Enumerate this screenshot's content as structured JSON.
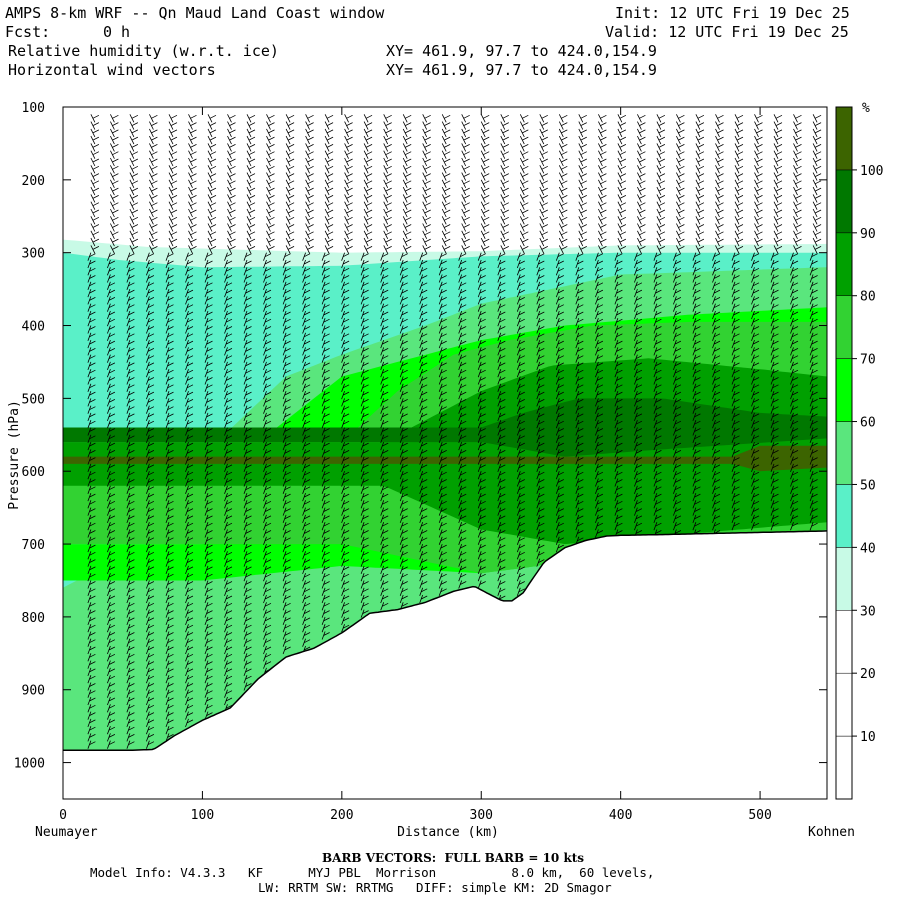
{
  "header": {
    "title": "AMPS 8-km WRF -- Qn Maud Land Coast window",
    "init": "Init: 12 UTC Fri 19 Dec 25",
    "fcst_label": "Fcst:",
    "fcst_value": "0 h",
    "valid": "Valid: 12 UTC Fri 19 Dec 25",
    "field1": "Relative humidity (w.r.t. ice)",
    "field2": "Horizontal wind vectors",
    "xy1": "XY= 461.9, 97.7 to 424.0,154.9",
    "xy2": "XY= 461.9, 97.7 to 424.0,154.9"
  },
  "footer": {
    "barb_note": "BARB VECTORS:  FULL BARB = 10 kts",
    "line1": "Model Info: V4.3.3   KF      MYJ PBL  Morrison          8.0 km,  60 levels,",
    "line2": "LW: RRTM SW: RRTMG   DIFF: simple KM: 2D Smagor"
  },
  "chart_data": {
    "type": "heatmap",
    "title": "Relative humidity (w.r.t. ice)",
    "xlabel": "Distance (km)",
    "ylabel": "Pressure (hPa)",
    "xlim": [
      0,
      548
    ],
    "ylim": [
      1050,
      100
    ],
    "x_ticks": [
      0,
      100,
      200,
      300,
      400,
      500
    ],
    "y_ticks": [
      100,
      200,
      300,
      400,
      500,
      600,
      700,
      800,
      900,
      1000
    ],
    "x_start_label": "Neumayer",
    "x_end_label": "Kohnen",
    "colorbar": {
      "unit": "%",
      "levels": [
        10,
        20,
        30,
        40,
        50,
        60,
        70,
        80,
        90,
        100
      ],
      "colors": [
        "#ffffff",
        "#ffffff",
        "#ffffff",
        "#c8fae6",
        "#5af0c8",
        "#5ae67d",
        "#00ff00",
        "#32d232",
        "#00a000",
        "#007800",
        "#3c6400"
      ]
    },
    "terrain_profile": {
      "x_km": [
        0,
        10,
        30,
        50,
        65,
        80,
        100,
        120,
        140,
        160,
        180,
        200,
        220,
        240,
        260,
        280,
        295,
        305,
        315,
        322,
        330,
        345,
        360,
        375,
        390,
        400,
        430,
        500,
        548
      ],
      "surface_hpa": [
        983,
        983,
        983,
        983,
        982,
        963,
        942,
        925,
        885,
        855,
        843,
        822,
        795,
        790,
        780,
        765,
        758,
        768,
        778,
        778,
        767,
        725,
        705,
        695,
        689,
        688,
        687,
        684,
        682
      ]
    }
  }
}
